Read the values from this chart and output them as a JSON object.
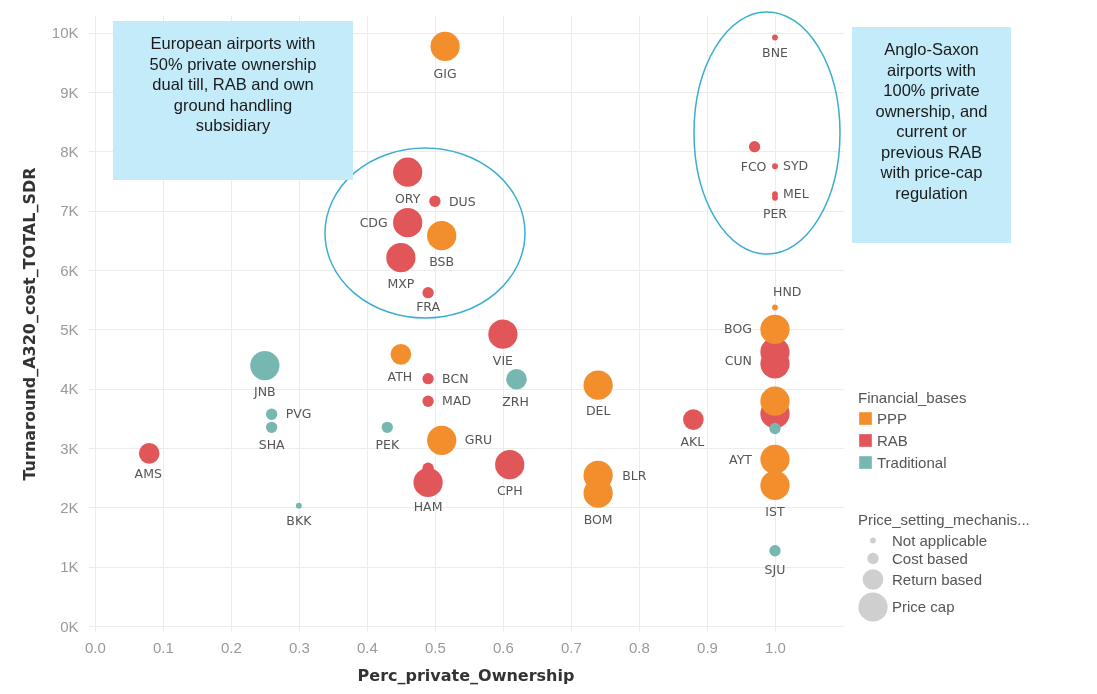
{
  "chart_data": {
    "type": "bubble",
    "xlabel": "Perc_private_Ownership",
    "ylabel": "Turnaround_A320_cost_TOTAL_SDR",
    "legend_title": [
      "Financial_bases",
      "Price_setting_mechanis..."
    ],
    "xlim": [
      -0.01,
      1.1
    ],
    "xticks": [
      {
        "value": 0,
        "label": "0.0"
      },
      0.1,
      0.2,
      0.3,
      0.4,
      0.5,
      0.6,
      0.7,
      0.8,
      0.9,
      {
        "value": 1,
        "label": "1.0"
      }
    ],
    "ylim": [
      -100,
      10300
    ],
    "yticks": [
      {
        "value": 0,
        "label": "0K"
      },
      {
        "value": 1000,
        "label": "1K"
      },
      {
        "value": 2000,
        "label": "2K"
      },
      {
        "value": 3000,
        "label": "3K"
      },
      {
        "value": 4000,
        "label": "4K"
      },
      {
        "value": 5000,
        "label": "5K"
      },
      {
        "value": 6000,
        "label": "6K"
      },
      {
        "value": 7000,
        "label": "7K"
      },
      {
        "value": 8000,
        "label": "8K"
      },
      {
        "value": 9000,
        "label": "9K"
      },
      {
        "value": 10000,
        "label": "10K"
      }
    ],
    "grid": true,
    "legend": "right",
    "marker": "circle",
    "size_legend": [
      {
        "value": 0.04,
        "label": "Not applicable"
      },
      {
        "value": 0.15,
        "label": "Cost based"
      },
      {
        "value": 0.5,
        "label": "Return based"
      },
      {
        "value": 1,
        "label": "Price cap"
      }
    ],
    "series": [
      {
        "name": "PPP",
        "color": "#f28e2b",
        "x": [
          0.515,
          0.51,
          0.45,
          0.51,
          0.74,
          0.74,
          0.74,
          1.0,
          1.0,
          1.0,
          1.0,
          1.0
        ],
        "values": [
          9770,
          6580,
          4580,
          3130,
          4060,
          2540,
          2240,
          5370,
          5000,
          3790,
          2810,
          2370
        ],
        "sizes": [
          1,
          1,
          0.5,
          1,
          1,
          1,
          1,
          0.04,
          1,
          1,
          1,
          1
        ]
      },
      {
        "name": "RAB",
        "color": "#e15759",
        "x": [
          0.46,
          0.5,
          0.46,
          0.45,
          0.49,
          0.6,
          0.49,
          0.49,
          0.08,
          0.61,
          0.49,
          0.49,
          0.88,
          1.0,
          1.0,
          1.0,
          1.0,
          0.97,
          1.0,
          1.0,
          1.0
        ],
        "values": [
          7650,
          7160,
          6800,
          6210,
          5620,
          4920,
          4170,
          3790,
          2910,
          2720,
          2660,
          2420,
          3480,
          4620,
          4420,
          3580,
          9920,
          8080,
          7750,
          7280,
          7220
        ],
        "sizes": [
          1,
          0.15,
          1,
          1,
          0.15,
          1,
          0.15,
          0.15,
          0.5,
          1,
          0.15,
          1,
          0.5,
          1,
          1,
          1,
          0.04,
          0.15,
          0.04,
          0.04,
          0.04
        ]
      },
      {
        "name": "Traditional",
        "color": "#76b7b2",
        "x": [
          0.25,
          0.62,
          0.26,
          0.26,
          0.43,
          0.3,
          1.0,
          1.0
        ],
        "values": [
          4390,
          4160,
          3570,
          3350,
          3350,
          2030,
          3330,
          1270
        ],
        "sizes": [
          1,
          0.5,
          0.15,
          0.15,
          0.15,
          0.04,
          0.15,
          0.15
        ]
      }
    ],
    "annotations": [
      {
        "text": "GIG",
        "x": 0.515,
        "y": 9770
      },
      {
        "text": "ORY",
        "x": 0.46,
        "y": 7650
      },
      {
        "text": "DUS",
        "x": 0.5,
        "y": 7160
      },
      {
        "text": "CDG",
        "x": 0.46,
        "y": 6800
      },
      {
        "text": "BSB",
        "x": 0.51,
        "y": 6580
      },
      {
        "text": "MXP",
        "x": 0.45,
        "y": 6210
      },
      {
        "text": "FRA",
        "x": 0.49,
        "y": 5620
      },
      {
        "text": "VIE",
        "x": 0.6,
        "y": 4920
      },
      {
        "text": "ATH",
        "x": 0.45,
        "y": 4580
      },
      {
        "text": "JNB",
        "x": 0.25,
        "y": 4390
      },
      {
        "text": "BCN",
        "x": 0.49,
        "y": 4170
      },
      {
        "text": "ZRH",
        "x": 0.62,
        "y": 4160
      },
      {
        "text": "MAD",
        "x": 0.49,
        "y": 3790
      },
      {
        "text": "PVG",
        "x": 0.26,
        "y": 3570
      },
      {
        "text": "SHA",
        "x": 0.26,
        "y": 3350
      },
      {
        "text": "PEK",
        "x": 0.43,
        "y": 3350
      },
      {
        "text": "GRU",
        "x": 0.51,
        "y": 3130
      },
      {
        "text": "AMS",
        "x": 0.08,
        "y": 2910
      },
      {
        "text": "CPH",
        "x": 0.61,
        "y": 2720
      },
      {
        "text": "HAM",
        "x": 0.49,
        "y": 2420
      },
      {
        "text": "BKK",
        "x": 0.3,
        "y": 2030
      },
      {
        "text": "DEL",
        "x": 0.74,
        "y": 4060
      },
      {
        "text": "AKL",
        "x": 0.88,
        "y": 3480
      },
      {
        "text": "BLR",
        "x": 0.74,
        "y": 2540
      },
      {
        "text": "BOM",
        "x": 0.74,
        "y": 2240
      },
      {
        "text": "HND",
        "x": 1.0,
        "y": 5370
      },
      {
        "text": "BOG",
        "x": 1.0,
        "y": 5000
      },
      {
        "text": "CUN",
        "x": 1.0,
        "y": 4620
      },
      {
        "text": "AYT",
        "x": 1.0,
        "y": 2810
      },
      {
        "text": "IST",
        "x": 1.0,
        "y": 2370
      },
      {
        "text": "SJU",
        "x": 1.0,
        "y": 1270
      },
      {
        "text": "BNE",
        "x": 1.0,
        "y": 9920
      },
      {
        "text": "FCO",
        "x": 0.97,
        "y": 8080
      },
      {
        "text": "SYD",
        "x": 1.0,
        "y": 7750
      },
      {
        "text": "MEL",
        "x": 1.0,
        "y": 7280
      },
      {
        "text": "PER",
        "x": 1.0,
        "y": 7220
      },
      "European airports with 50% private ownership dual till, RAB and own ground handling subsidiary",
      "Anglo-Saxon airports with 100% private ownership, and current or previous RAB with price-cap regulation"
    ]
  }
}
